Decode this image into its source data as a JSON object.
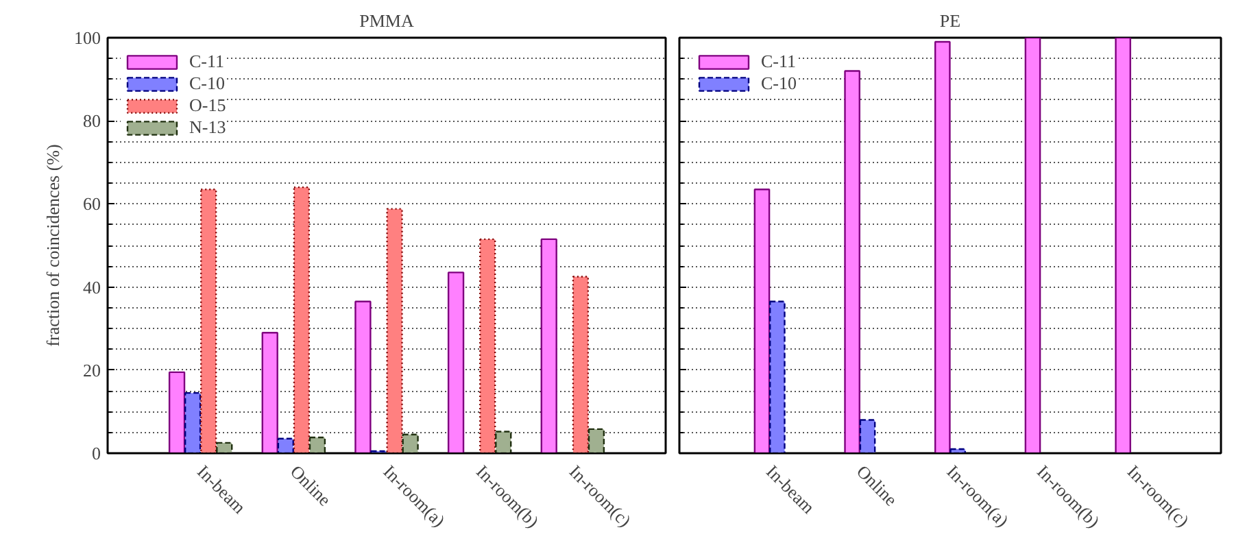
{
  "chart_data": [
    {
      "type": "bar",
      "title": "PMMA",
      "ylabel": "fraction of coincidences (%)",
      "categories": [
        "In-beam",
        "Online",
        "In-room(a)",
        "In-room(b)",
        "In-room(c)"
      ],
      "ylim": [
        0,
        100
      ],
      "yticks": [
        0,
        20,
        40,
        60,
        80,
        100
      ],
      "grid": "y",
      "legend": "top left",
      "series": [
        {
          "name": "C-11",
          "color": "#ff80ff",
          "line_style": "solid",
          "values": [
            19.5,
            29,
            36.5,
            43.5,
            51.5
          ]
        },
        {
          "name": "C-10",
          "color": "#8080ff",
          "line_style": "dashed",
          "values": [
            14.5,
            3.5,
            0.5,
            null,
            null
          ]
        },
        {
          "name": "O-15",
          "color": "#ff8080",
          "line_style": "dotted",
          "values": [
            63.5,
            64,
            58.8,
            51.5,
            42.5
          ]
        },
        {
          "name": "N-13",
          "color": "#a0b090",
          "line_style": "dashed",
          "values": [
            2.5,
            3.8,
            4.5,
            5.2,
            5.8
          ]
        }
      ]
    },
    {
      "type": "bar",
      "title": "PE",
      "categories": [
        "In-beam",
        "Online",
        "In-room(a)",
        "In-room(b)",
        "In-room(c)"
      ],
      "ylim": [
        0,
        100
      ],
      "yticks": [
        0,
        20,
        40,
        60,
        80,
        100
      ],
      "grid": "y",
      "legend": "top left",
      "tick_labels": "x",
      "series": [
        {
          "name": "C-11",
          "color": "#ff80ff",
          "line_style": "solid",
          "values": [
            63.5,
            92,
            99,
            100,
            100
          ]
        },
        {
          "name": "C-10",
          "color": "#8080ff",
          "line_style": "dashed",
          "values": [
            36.5,
            8,
            1,
            null,
            null
          ]
        }
      ]
    }
  ]
}
